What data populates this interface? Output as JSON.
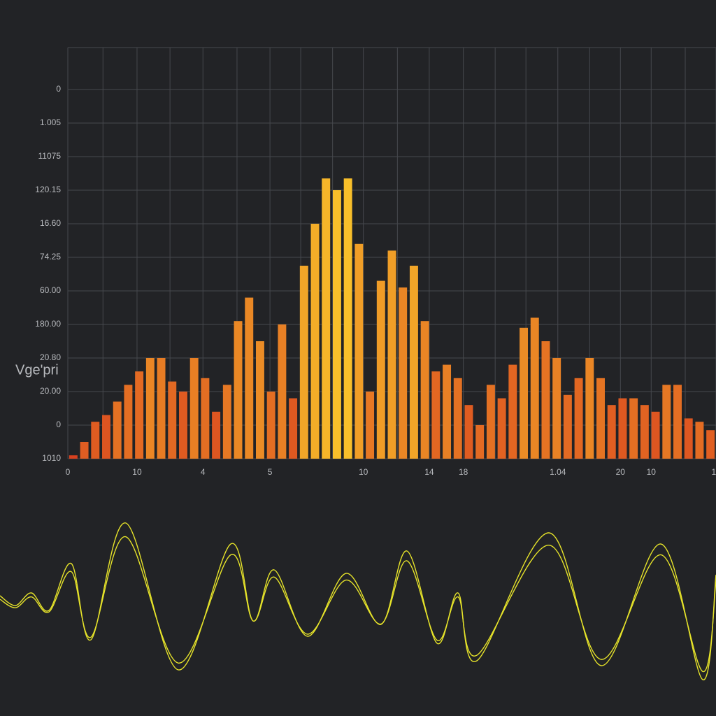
{
  "chart_data": {
    "type": "bar",
    "ylabel": "Vge'pri",
    "values": [
      0.1,
      0.5,
      1.1,
      1.3,
      1.7,
      2.2,
      2.6,
      3.0,
      3.0,
      2.3,
      2.0,
      3.0,
      2.4,
      1.4,
      2.2,
      4.1,
      4.8,
      3.5,
      2.0,
      4.0,
      1.8,
      5.75,
      7.0,
      8.35,
      8.0,
      8.35,
      6.4,
      2.0,
      5.3,
      6.2,
      5.1,
      5.75,
      4.1,
      2.6,
      2.8,
      2.4,
      1.6,
      1.0,
      2.2,
      1.8,
      2.8,
      3.9,
      4.2,
      3.5,
      3.0,
      1.9,
      2.4,
      3.0,
      2.4,
      1.6,
      1.8,
      1.8,
      1.6,
      1.4,
      2.2,
      2.2,
      1.2,
      1.1,
      0.85
    ],
    "colors": [
      "#d8401f",
      "#f8bf2a"
    ],
    "xlim": [
      0,
      59
    ],
    "xticks": [
      {
        "value": 0,
        "label": "0"
      },
      {
        "value": 6.3,
        "label": "10"
      },
      {
        "value": 12.3,
        "label": "4"
      },
      {
        "value": 18.4,
        "label": "5"
      },
      {
        "value": 26.9,
        "label": "10"
      },
      {
        "value": 32.9,
        "label": "14"
      },
      {
        "value": 36.0,
        "label": "18"
      },
      {
        "value": 44.6,
        "label": "1.04"
      },
      {
        "value": 50.3,
        "label": "20"
      },
      {
        "value": 53.1,
        "label": "10"
      },
      {
        "value": 58.8,
        "label": "1"
      }
    ],
    "xgrid": [
      0,
      3.2,
      6.3,
      9.3,
      12.3,
      15.4,
      18.4,
      21.2,
      24.1,
      26.9,
      30.0,
      32.9,
      36.0,
      38.9,
      41.7,
      44.6,
      47.5,
      50.3,
      53.1,
      56.2,
      59
    ],
    "ylim": [
      0,
      12.25
    ],
    "yticks": [
      {
        "value": 0,
        "label": "1010"
      },
      {
        "value": 1,
        "label": "0"
      },
      {
        "value": 2,
        "label": "20.00"
      },
      {
        "value": 3,
        "label": "20.80"
      },
      {
        "value": 4,
        "label": "180.00"
      },
      {
        "value": 5,
        "label": "60.00"
      },
      {
        "value": 6,
        "label": "74.25"
      },
      {
        "value": 7,
        "label": "16.60"
      },
      {
        "value": 8,
        "label": "120.15"
      },
      {
        "value": 9,
        "label": "11075"
      },
      {
        "value": 10,
        "label": "1.005"
      },
      {
        "value": 11,
        "label": "0"
      }
    ],
    "grid": true
  }
}
